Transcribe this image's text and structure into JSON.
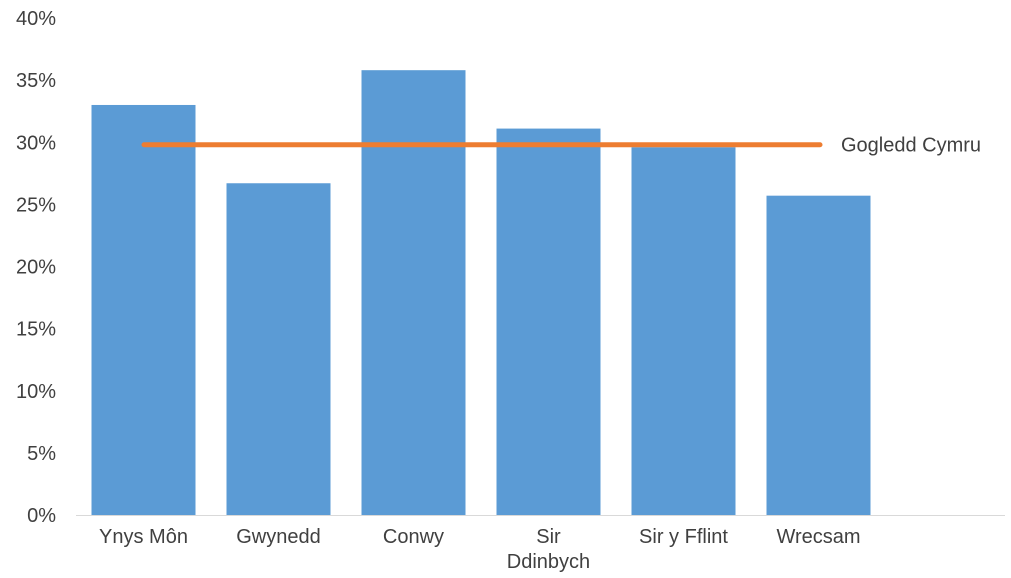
{
  "chart_data": {
    "type": "bar",
    "categories": [
      "Ynys Môn",
      "Gwynedd",
      "Conwy",
      "Sir Ddinbych",
      "Sir y Fflint",
      "Wrecsam"
    ],
    "category_label_lines": [
      [
        "Ynys Môn"
      ],
      [
        "Gwynedd"
      ],
      [
        "Conwy"
      ],
      [
        "Sir",
        "Ddinbych"
      ],
      [
        "Sir y Fflint"
      ],
      [
        "Wrecsam"
      ]
    ],
    "series": [
      {
        "values": [
          33.0,
          26.7,
          35.8,
          31.1,
          29.6,
          25.7
        ]
      }
    ],
    "reference_line": {
      "name": "Gogledd Cymru",
      "value": 29.8
    },
    "y_ticks": [
      "0%",
      "5%",
      "10%",
      "15%",
      "20%",
      "25%",
      "30%",
      "35%",
      "40%"
    ],
    "ylim": [
      0,
      40
    ],
    "title": "",
    "xlabel": "",
    "ylabel": "",
    "grid": false,
    "legend": "none",
    "colors": {
      "bar": "#5b9bd5",
      "reference_line": "#ed7d31",
      "axis": "#d9d9d9"
    }
  }
}
